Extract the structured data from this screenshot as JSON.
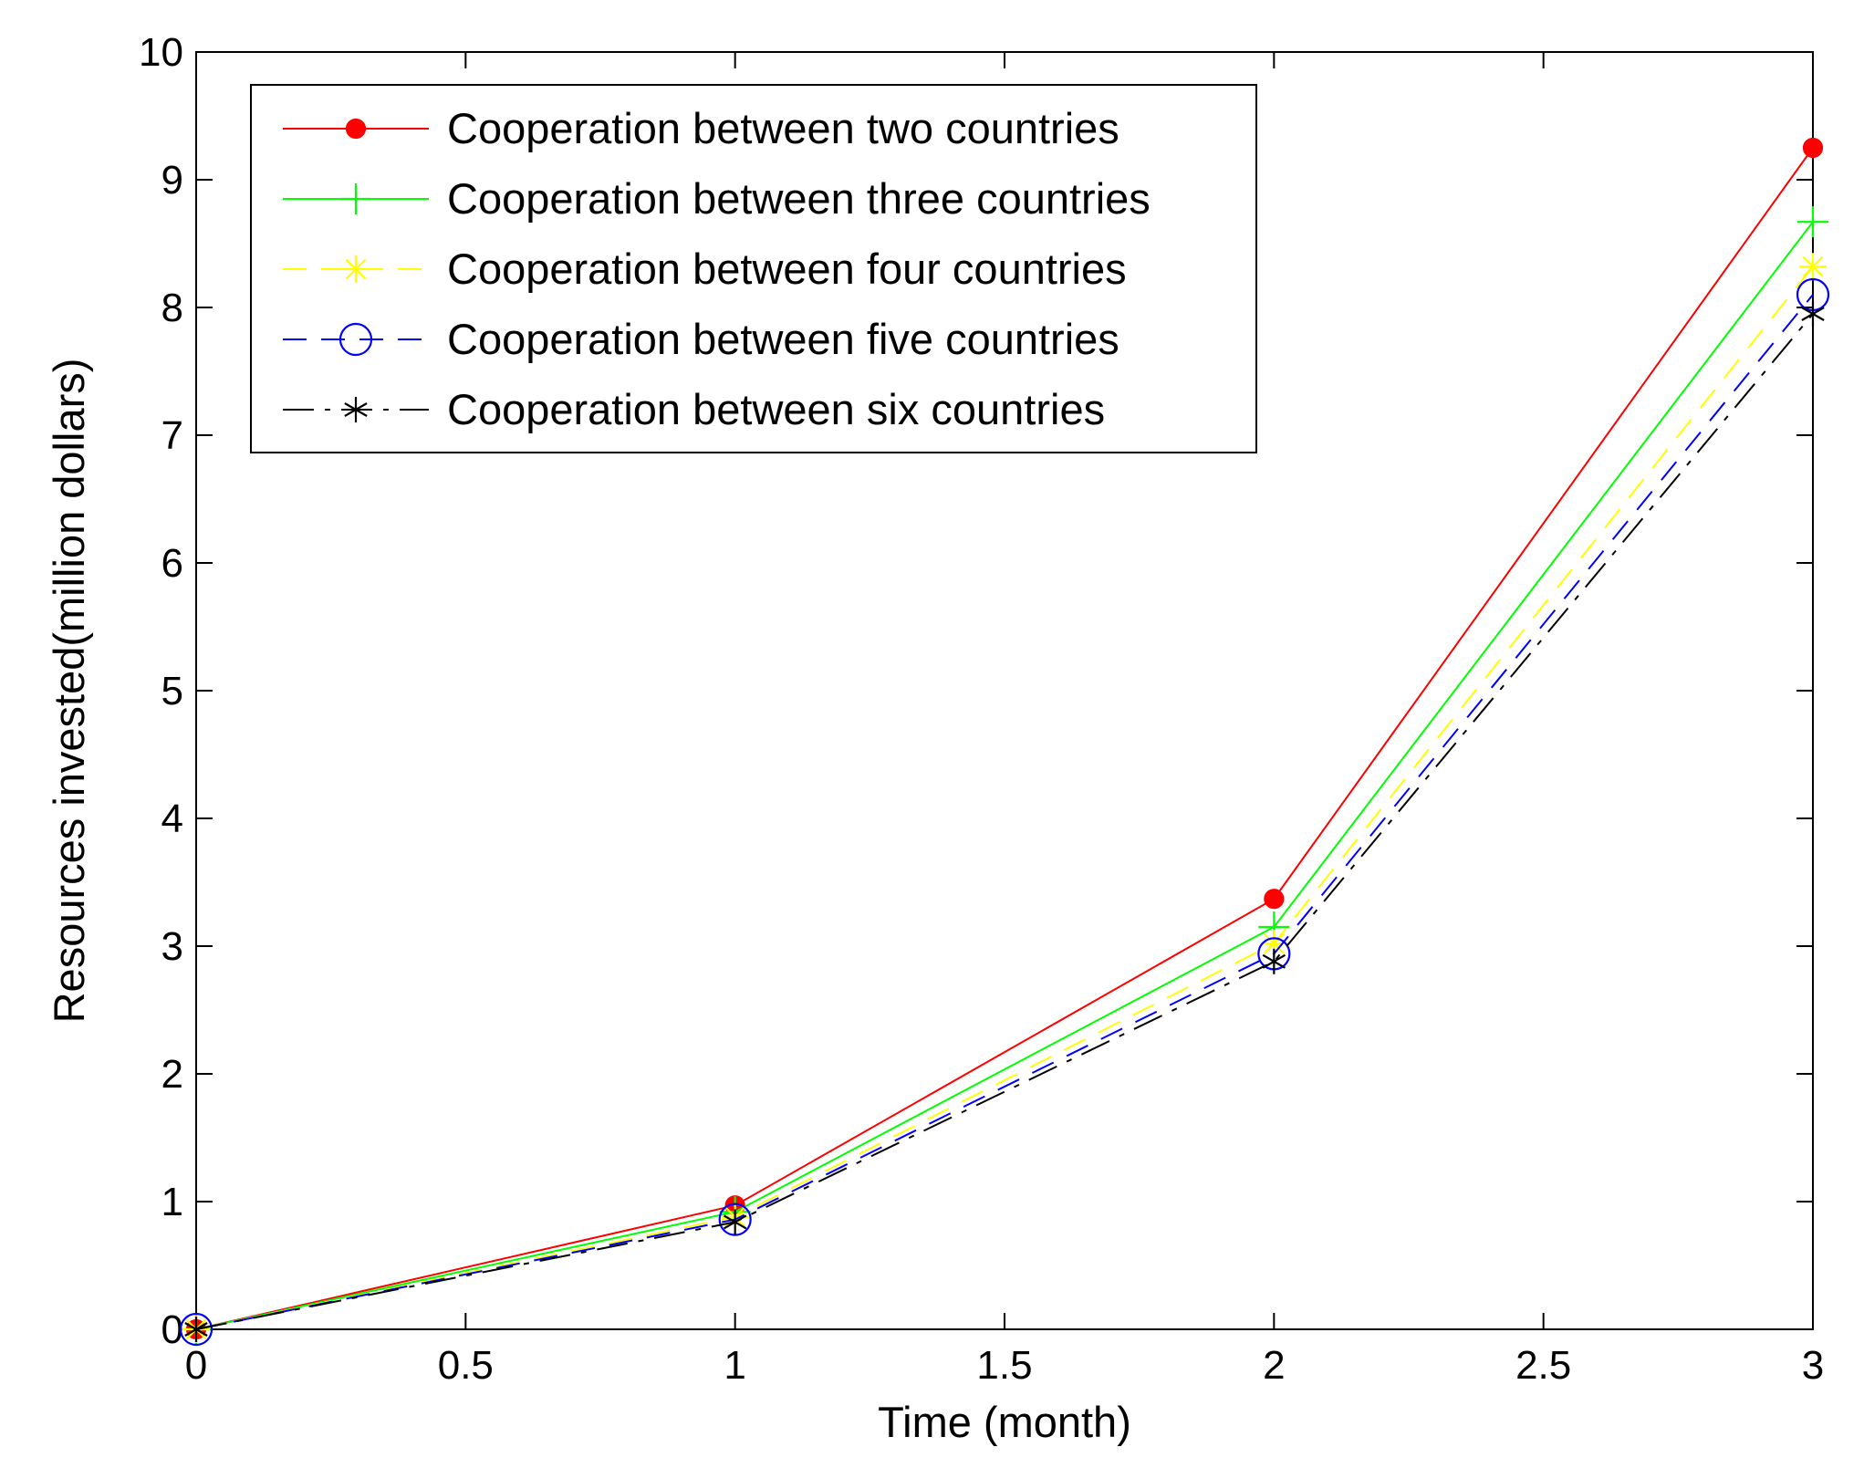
{
  "chart_data": {
    "type": "line",
    "title": "",
    "xlabel": "Time (month)",
    "ylabel": "Resources invested(million dollars)",
    "xlim": [
      0,
      3
    ],
    "ylim": [
      0,
      10
    ],
    "xticks": [
      0,
      0.5,
      1,
      1.5,
      2,
      2.5,
      3
    ],
    "yticks": [
      0,
      1,
      2,
      3,
      4,
      5,
      6,
      7,
      8,
      9,
      10
    ],
    "xtick_labels": [
      "0",
      "0.5",
      "1",
      "1.5",
      "2",
      "2.5",
      "3"
    ],
    "ytick_labels": [
      "0",
      "1",
      "2",
      "3",
      "4",
      "5",
      "6",
      "7",
      "8",
      "9",
      "10"
    ],
    "grid": false,
    "legend": "top-left",
    "series": [
      {
        "name": "Cooperation between two countries",
        "color": "#ff0000",
        "marker": "filled-circle",
        "line": "solid",
        "x": [
          0,
          1,
          2,
          3
        ],
        "y": [
          0,
          0.97,
          3.37,
          9.25
        ]
      },
      {
        "name": "Cooperation between three countries",
        "color": "#00ff00",
        "marker": "plus",
        "line": "solid",
        "x": [
          0,
          1,
          2,
          3
        ],
        "y": [
          0,
          0.92,
          3.15,
          8.67
        ]
      },
      {
        "name": "Cooperation between four countries",
        "color": "#ffff00",
        "marker": "asterisk",
        "line": "dashed",
        "x": [
          0,
          1,
          2,
          3
        ],
        "y": [
          0,
          0.88,
          3.02,
          8.32
        ]
      },
      {
        "name": "Cooperation between five countries",
        "color": "#0000ff",
        "marker": "open-circle",
        "line": "dashed",
        "x": [
          0,
          1,
          2,
          3
        ],
        "y": [
          0,
          0.86,
          2.94,
          8.1
        ]
      },
      {
        "name": "Cooperation between six countries",
        "color": "#000000",
        "marker": "star",
        "line": "dashdot",
        "x": [
          0,
          1,
          2,
          3
        ],
        "y": [
          0,
          0.84,
          2.88,
          7.95
        ]
      }
    ]
  }
}
